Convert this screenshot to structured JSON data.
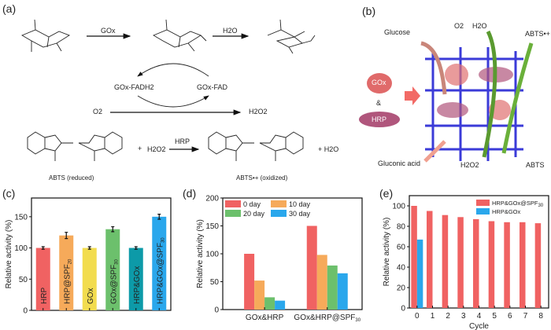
{
  "panel_a": {
    "label": "(a)",
    "enzyme_gox": "GOx",
    "water": "H2O",
    "cycle_left": "GOx-FADH2",
    "cycle_right": "GOx-FAD",
    "o2": "O2",
    "h2o2": "H2O2",
    "plus1": "+",
    "h2o2_b": "H2O2",
    "enzyme_hrp": "HRP",
    "plus2": "+ H2O",
    "abts_reduced": "ABTS (reduced)",
    "abts_oxidized": "ABTS•+ (oxidized)"
  },
  "panel_b": {
    "label": "(b)",
    "glucose": "Glucose",
    "o2": "O2",
    "h2o": "H2O",
    "abts_radical": "ABTS•+",
    "gox": "GOx",
    "amp": "&",
    "hrp": "HRP",
    "gluconic": "Gluconic acid",
    "h2o2": "H2O2",
    "abts": "ABTS"
  },
  "chart_data": [
    {
      "panel": "(c)",
      "type": "bar",
      "ylabel": "Relative activity (%)",
      "ylim": [
        0,
        180
      ],
      "yticks": [
        0,
        50,
        100,
        150
      ],
      "categories": [
        {
          "main": "HRP",
          "sub": ""
        },
        {
          "main": "HRP@SPF",
          "sub": "20"
        },
        {
          "main": "GOx",
          "sub": ""
        },
        {
          "main": "GOx@SPF",
          "sub": "30"
        },
        {
          "main": "HRP&GOx",
          "sub": ""
        },
        {
          "main": "HRP&GOx@SPF",
          "sub": "30"
        }
      ],
      "values": [
        100,
        120,
        100,
        130,
        100,
        150
      ],
      "errors": [
        2,
        5,
        2,
        4,
        2,
        4
      ],
      "colors": [
        "#f06262",
        "#f6aa5a",
        "#f2dc4e",
        "#6cc06c",
        "#0d9aa8",
        "#2aa7ec"
      ]
    },
    {
      "panel": "(d)",
      "type": "bar",
      "ylabel": "Relative activity (%)",
      "ylim": [
        0,
        200
      ],
      "yticks": [
        0,
        50,
        100,
        150,
        200
      ],
      "categories": [
        {
          "main": "GOx&HRP",
          "sub": ""
        },
        {
          "main": "GOx&HRP@SPF",
          "sub": "30"
        }
      ],
      "series": [
        {
          "name": "0 day",
          "values": [
            100,
            150
          ],
          "color": "#f06262"
        },
        {
          "name": "10 day",
          "values": [
            52,
            98
          ],
          "color": "#f6aa5a"
        },
        {
          "name": "20 day",
          "values": [
            22,
            79
          ],
          "color": "#6cc06c"
        },
        {
          "name": "30 day",
          "values": [
            16,
            65
          ],
          "color": "#2aa7ec"
        }
      ],
      "legend": "top-left"
    },
    {
      "panel": "(e)",
      "type": "bar",
      "xlabel": "Cycle",
      "ylabel": "Relative activity (%)",
      "ylim": [
        0,
        110
      ],
      "yticks": [
        0,
        20,
        40,
        60,
        80,
        100
      ],
      "categories": [
        "0",
        "1",
        "2",
        "3",
        "4",
        "5",
        "6",
        "7",
        "8"
      ],
      "series": [
        {
          "name": {
            "main": "HRP&GOx@SPF",
            "sub": "30"
          },
          "values": [
            100,
            95,
            91,
            89,
            87,
            85,
            84,
            84,
            83
          ],
          "color": "#f06262"
        },
        {
          "name": {
            "main": "HRP&GOx",
            "sub": ""
          },
          "values": [
            67,
            null,
            null,
            null,
            null,
            null,
            null,
            null,
            null
          ],
          "color": "#2aa7ec"
        }
      ],
      "legend": "top-right"
    }
  ]
}
